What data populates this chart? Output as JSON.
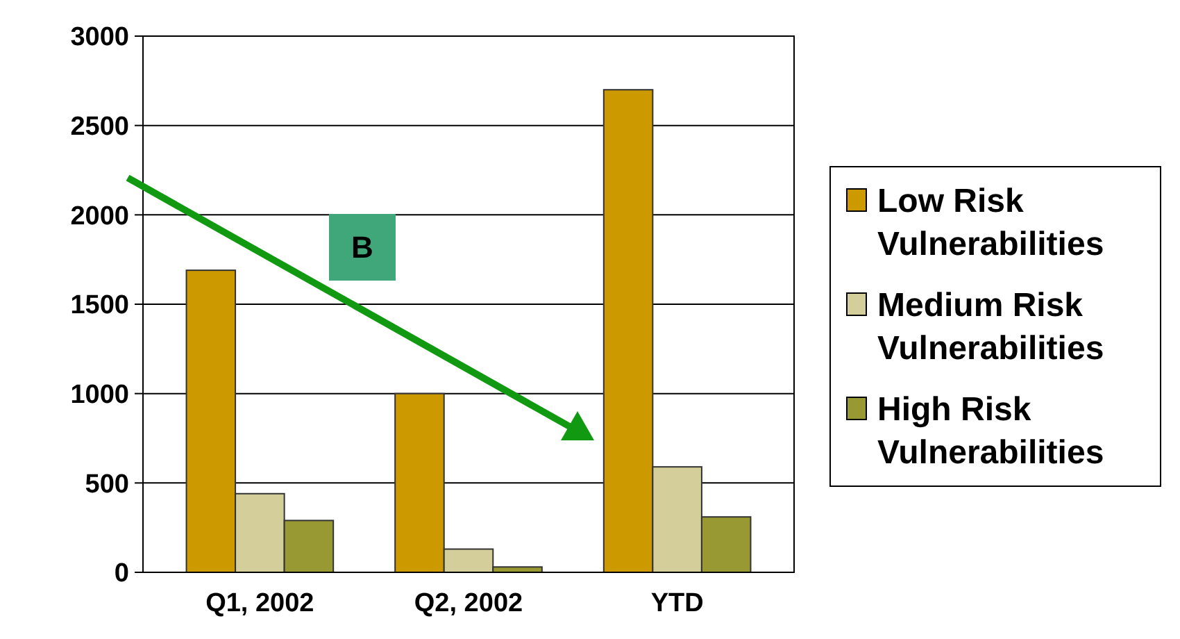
{
  "chart_data": {
    "type": "bar",
    "categories": [
      "Q1, 2002",
      "Q2, 2002",
      "YTD"
    ],
    "series": [
      {
        "name": "Low Risk Vulnerabilities",
        "color": "#cc9900",
        "values": [
          1690,
          1000,
          2700
        ]
      },
      {
        "name": "Medium Risk Vulnerabilities",
        "color": "#d4cf9a",
        "values": [
          440,
          130,
          590
        ]
      },
      {
        "name": "High Risk Vulnerabilities",
        "color": "#999933",
        "values": [
          290,
          30,
          310
        ]
      }
    ],
    "ylim": [
      0,
      3000
    ],
    "yticks": [
      0,
      500,
      1000,
      1500,
      2000,
      2500,
      3000
    ],
    "grid": "y",
    "legend": "right",
    "annotations": [
      "B"
    ]
  }
}
